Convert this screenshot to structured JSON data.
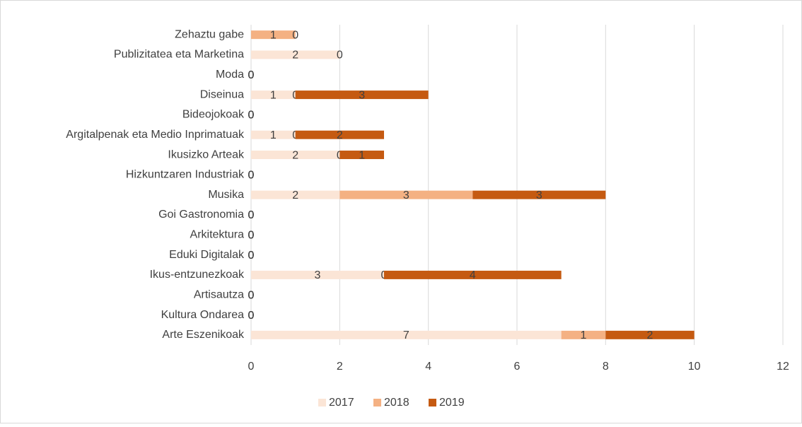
{
  "chart_data": {
    "type": "stacked_barh",
    "categories": [
      "Zehaztu gabe",
      "Publizitatea eta Marketina",
      "Moda",
      "Diseinua",
      "Bideojokoak",
      "Argitalpenak eta Medio Inprimatuak",
      "Ikusizko Arteak",
      "Hizkuntzaren Industriak",
      "Musika",
      "Goi Gastronomia",
      "Arkitektura",
      "Eduki Digitalak",
      "Ikus-entzunezkoak",
      "Artisautza",
      "Kultura Ondarea",
      "Arte Eszenikoak"
    ],
    "series": [
      {
        "name": "2017",
        "color": "#fbe5d6",
        "values": [
          null,
          2,
          0,
          1,
          0,
          1,
          2,
          0,
          2,
          0,
          0,
          0,
          3,
          0,
          0,
          7
        ]
      },
      {
        "name": "2018",
        "color": "#f4b183",
        "values": [
          1,
          0,
          0,
          0,
          0,
          0,
          0,
          0,
          3,
          0,
          0,
          0,
          0,
          0,
          0,
          1
        ]
      },
      {
        "name": "2019",
        "color": "#c55a11",
        "values": [
          0,
          null,
          0,
          3,
          0,
          2,
          1,
          0,
          3,
          0,
          0,
          0,
          4,
          0,
          0,
          2
        ]
      }
    ],
    "xlim": [
      0,
      12
    ],
    "xticks": [
      0,
      2,
      4,
      6,
      8,
      10,
      12
    ],
    "grid": true,
    "legend": "bottom"
  }
}
